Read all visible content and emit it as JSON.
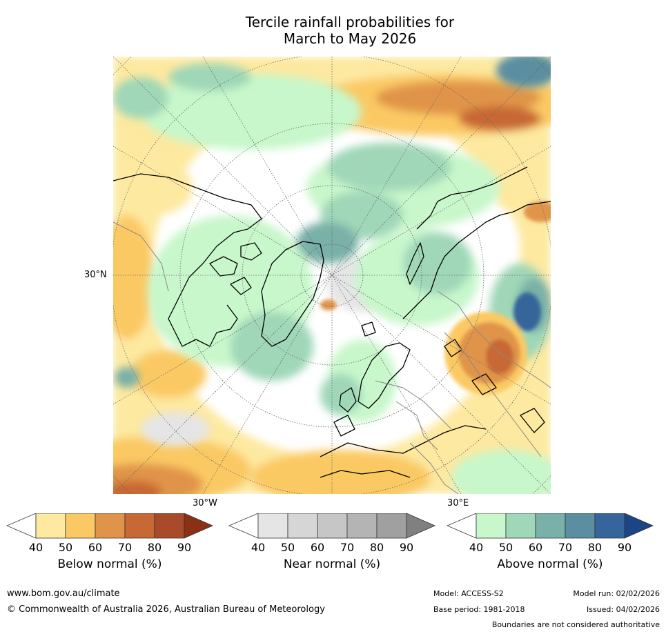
{
  "title": {
    "line1": "Tercile rainfall probabilities for",
    "line2": "March to May 2026"
  },
  "map": {
    "lat_label": "30°N",
    "lon_label_left": "30°W",
    "lon_label_right": "30°E"
  },
  "colorbars": [
    {
      "name": "below",
      "label": "Below normal (%)",
      "ticks": [
        "40",
        "50",
        "60",
        "70",
        "80",
        "90"
      ],
      "colors": [
        "#ffffff",
        "#fde9a0",
        "#fbc964",
        "#e09449",
        "#c86834",
        "#a94a2a",
        "#8b3015"
      ]
    },
    {
      "name": "near",
      "label": "Near normal (%)",
      "ticks": [
        "40",
        "50",
        "60",
        "70",
        "80",
        "90"
      ],
      "colors": [
        "#ffffff",
        "#e5e5e5",
        "#d6d6d6",
        "#c6c6c6",
        "#b4b4b4",
        "#a0a0a0",
        "#808080"
      ]
    },
    {
      "name": "above",
      "label": "Above normal (%)",
      "ticks": [
        "40",
        "50",
        "60",
        "70",
        "80",
        "90"
      ],
      "colors": [
        "#ffffff",
        "#c8f7cb",
        "#9fd7b8",
        "#79b0a8",
        "#5a8ea0",
        "#35659a",
        "#1b4584"
      ]
    }
  ],
  "footer": {
    "website": "www.bom.gov.au/climate",
    "copyright": "© Commonwealth of Australia 2026, Australian Bureau of Meteorology",
    "model": "Model: ACCESS-S2",
    "model_run": "Model run: 02/02/2026",
    "base_period": "Base period: 1981-2018",
    "issued": "Issued: 04/02/2026",
    "disclaimer": "Boundaries are not considered authoritative"
  }
}
